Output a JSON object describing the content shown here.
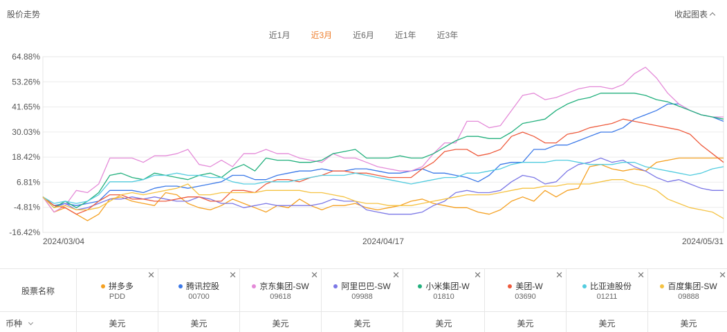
{
  "header": {
    "title": "股价走势",
    "collapse_label": "收起图表"
  },
  "range_tabs": [
    {
      "label": "近1月",
      "active": false
    },
    {
      "label": "近3月",
      "active": true
    },
    {
      "label": "近6月",
      "active": false
    },
    {
      "label": "近1年",
      "active": false
    },
    {
      "label": "近3年",
      "active": false
    }
  ],
  "chart_data": {
    "type": "line",
    "y_unit": "%",
    "y_ticks": [
      "64.88%",
      "53.26%",
      "41.65%",
      "30.03%",
      "18.42%",
      "6.81%",
      "-4.81%",
      "-16.42%"
    ],
    "y_tick_values": [
      64.88,
      53.26,
      41.65,
      30.03,
      18.42,
      6.81,
      -4.81,
      -16.42
    ],
    "ylim": [
      -16.42,
      64.88
    ],
    "x_ticks": [
      "2024/03/04",
      "2024/04/17",
      "2024/05/31"
    ],
    "grid": true,
    "n_points": 62,
    "series": [
      {
        "name": "拼多多",
        "code": "PDD",
        "color": "#f5a020",
        "values": [
          0,
          -7,
          -5,
          -8,
          -11,
          -8,
          -1,
          0,
          -2,
          -3,
          -4,
          2,
          1,
          -3,
          -5,
          -6,
          -4,
          -1,
          -3,
          -5,
          -7,
          -4,
          -5,
          -1,
          -4,
          -6,
          -4,
          -4,
          -3,
          -5,
          -6,
          -5,
          -4,
          -2,
          -1,
          -3,
          -4,
          -5,
          -5,
          -7,
          -8,
          -6,
          -2,
          0,
          -2,
          3,
          0,
          3,
          4,
          14,
          15,
          13,
          12,
          13,
          12,
          16,
          17,
          18,
          18,
          18,
          18,
          18
        ]
      },
      {
        "name": "腾讯控股",
        "code": "00700",
        "color": "#3a78e8",
        "values": [
          0,
          -4,
          -3,
          -4,
          -3,
          -2,
          3,
          3,
          3,
          2,
          4,
          5,
          5,
          4,
          5,
          6,
          7,
          10,
          10,
          8,
          8,
          10,
          11,
          12,
          12,
          13,
          12,
          12,
          13,
          13,
          12,
          11,
          11,
          12,
          13,
          11,
          11,
          10,
          9,
          7,
          10,
          15,
          16,
          16,
          22,
          22,
          24,
          24,
          26,
          28,
          30,
          30,
          32,
          36,
          38,
          40,
          43,
          43,
          40,
          38,
          37,
          35
        ]
      },
      {
        "name": "京东集团-SW",
        "code": "09618",
        "color": "#e48ad8",
        "values": [
          0,
          -7,
          -4,
          3,
          2,
          6,
          18,
          18,
          18,
          16,
          19,
          19,
          20,
          22,
          15,
          14,
          17,
          14,
          20,
          20,
          22,
          20,
          20,
          18,
          17,
          16,
          20,
          18,
          18,
          16,
          14,
          13,
          12,
          12,
          14,
          20,
          25,
          25,
          35,
          35,
          32,
          33,
          40,
          47,
          48,
          45,
          46,
          48,
          50,
          51,
          51,
          50,
          52,
          57,
          60,
          55,
          48,
          43,
          40,
          38,
          37,
          37
        ]
      },
      {
        "name": "阿里巴巴-SW",
        "code": "09988",
        "color": "#7b77e6",
        "values": [
          0,
          -5,
          -3,
          -6,
          -5,
          -3,
          -1,
          -1,
          0,
          -1,
          0,
          -1,
          -2,
          -2,
          0,
          -1,
          -3,
          -3,
          -5,
          -4,
          -3,
          -4,
          -4,
          -4,
          -4,
          -3,
          -1,
          -2,
          -2,
          -6,
          -7,
          -8,
          -8,
          -8,
          -7,
          -4,
          -2,
          2,
          3,
          2,
          2,
          3,
          7,
          10,
          9,
          6,
          7,
          12,
          15,
          16,
          18,
          16,
          17,
          14,
          12,
          9,
          7,
          8,
          6,
          4,
          3,
          3
        ]
      },
      {
        "name": "小米集团-W",
        "code": "01810",
        "color": "#22b07d",
        "values": [
          0,
          -5,
          -2,
          -5,
          -2,
          2,
          10,
          11,
          9,
          8,
          11,
          10,
          9,
          8,
          10,
          11,
          9,
          13,
          15,
          12,
          18,
          17,
          17,
          16,
          16,
          17,
          20,
          21,
          22,
          18,
          18,
          18,
          19,
          18,
          18,
          20,
          23,
          26,
          28,
          28,
          27,
          27,
          30,
          34,
          35,
          36,
          40,
          43,
          45,
          46,
          48,
          48,
          48,
          48,
          47,
          45,
          44,
          42,
          40,
          38,
          37,
          36
        ]
      },
      {
        "name": "美团-W",
        "code": "03690",
        "color": "#ee5a3c",
        "values": [
          0,
          -4,
          -5,
          -8,
          -6,
          -2,
          1,
          1,
          -1,
          -1,
          -2,
          -2,
          -1,
          0,
          0,
          -2,
          -2,
          3,
          3,
          2,
          6,
          8,
          8,
          7,
          9,
          10,
          12,
          12,
          11,
          11,
          10,
          9,
          9,
          9,
          13,
          16,
          21,
          22,
          22,
          19,
          20,
          22,
          28,
          30,
          28,
          25,
          25,
          29,
          30,
          32,
          33,
          34,
          36,
          35,
          34,
          33,
          32,
          31,
          29,
          24,
          20,
          16
        ]
      },
      {
        "name": "比亚迪股份",
        "code": "01211",
        "color": "#53ccdf",
        "values": [
          0,
          -3,
          -2,
          -3,
          -2,
          1,
          7,
          7,
          7,
          8,
          10,
          10,
          11,
          10,
          10,
          9,
          9,
          7,
          6,
          6,
          7,
          7,
          7,
          8,
          9,
          10,
          10,
          10,
          11,
          10,
          9,
          8,
          7,
          6,
          7,
          8,
          9,
          9,
          11,
          11,
          12,
          13,
          15,
          16,
          16,
          16,
          17,
          17,
          16,
          15,
          15,
          15,
          16,
          16,
          14,
          13,
          12,
          11,
          10,
          11,
          13,
          14
        ]
      },
      {
        "name": "百度集团-SW",
        "code": "09888",
        "color": "#f5c242",
        "values": [
          0,
          -5,
          -4,
          -6,
          -6,
          -5,
          -2,
          1,
          2,
          1,
          2,
          3,
          4,
          6,
          1,
          1,
          2,
          2,
          2,
          2,
          3,
          3,
          3,
          3,
          2,
          2,
          1,
          0,
          -2,
          -3,
          -3,
          -4,
          -4,
          -4,
          -3,
          -2,
          -1,
          0,
          1,
          1,
          1,
          2,
          3,
          4,
          4,
          5,
          5,
          6,
          6,
          6,
          7,
          8,
          8,
          6,
          5,
          3,
          -1,
          -3,
          -5,
          -6,
          -7,
          -10
        ]
      }
    ]
  },
  "legend": {
    "name_header": "股票名称",
    "currency_header": "币种",
    "currency_value": "美元",
    "close_glyph": "✕"
  }
}
